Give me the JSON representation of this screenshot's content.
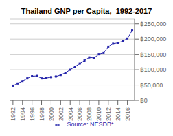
{
  "chart_data": {
    "type": "line",
    "title": "Thailand GNP per Capita,  1992-2017",
    "x": [
      1992,
      1993,
      1994,
      1995,
      1996,
      1997,
      1998,
      1999,
      2000,
      2001,
      2002,
      2003,
      2004,
      2005,
      2006,
      2007,
      2008,
      2009,
      2010,
      2011,
      2012,
      2013,
      2014,
      2015,
      2016,
      2017
    ],
    "series": [
      {
        "name": "  Source: NESDB*",
        "color": "#2222AA",
        "marker": "square",
        "values": [
          48000,
          55000,
          63000,
          72000,
          79000,
          80000,
          72000,
          73000,
          76000,
          78000,
          83000,
          90000,
          100000,
          110000,
          120000,
          130000,
          140000,
          138000,
          150000,
          155000,
          175000,
          185000,
          188000,
          193000,
          202000,
          228000
        ]
      }
    ],
    "xlim": [
      1991.3,
      2017.5
    ],
    "xticks": [
      1992,
      1994,
      1996,
      1998,
      2000,
      2002,
      2004,
      2006,
      2008,
      2010,
      2012,
      2014,
      2016
    ],
    "ylim": [
      0,
      265000
    ],
    "yticks": [
      {
        "value": 0,
        "label": "฿0"
      },
      {
        "value": 50000,
        "label": "฿50,000"
      },
      {
        "value": 100000,
        "label": "฿100,000"
      },
      {
        "value": 150000,
        "label": "฿150,000"
      },
      {
        "value": 200000,
        "label": "฿200,000"
      },
      {
        "value": 250000,
        "label": "฿250,000"
      }
    ],
    "grid": true,
    "legend": "bottom"
  }
}
